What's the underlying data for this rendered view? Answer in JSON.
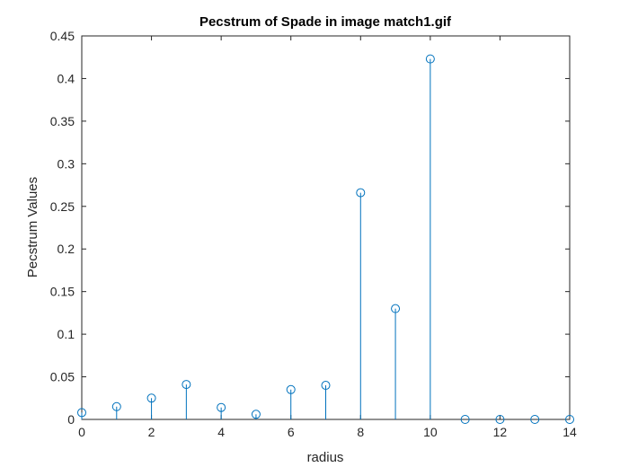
{
  "chart_data": {
    "type": "stem",
    "title": "Pecstrum of Spade in image match1.gif",
    "xlabel": "radius",
    "ylabel": "Pecstrum Values",
    "xlim": [
      0,
      14
    ],
    "ylim": [
      0,
      0.45
    ],
    "xticks": [
      "0",
      "2",
      "4",
      "6",
      "8",
      "10",
      "12",
      "14"
    ],
    "yticks": [
      "0",
      "0.05",
      "0.1",
      "0.15",
      "0.2",
      "0.25",
      "0.3",
      "0.35",
      "0.4",
      "0.45"
    ],
    "grid": false,
    "series": [
      {
        "color": "#0072BD",
        "marker": "circle-open",
        "x": [
          0,
          1,
          2,
          3,
          4,
          5,
          6,
          7,
          8,
          9,
          10,
          11,
          12,
          13,
          14
        ],
        "y": [
          0.008,
          0.015,
          0.025,
          0.041,
          0.014,
          0.006,
          0.035,
          0.04,
          0.266,
          0.13,
          0.423,
          0.0,
          0.0,
          0.0,
          0.0
        ]
      }
    ]
  }
}
